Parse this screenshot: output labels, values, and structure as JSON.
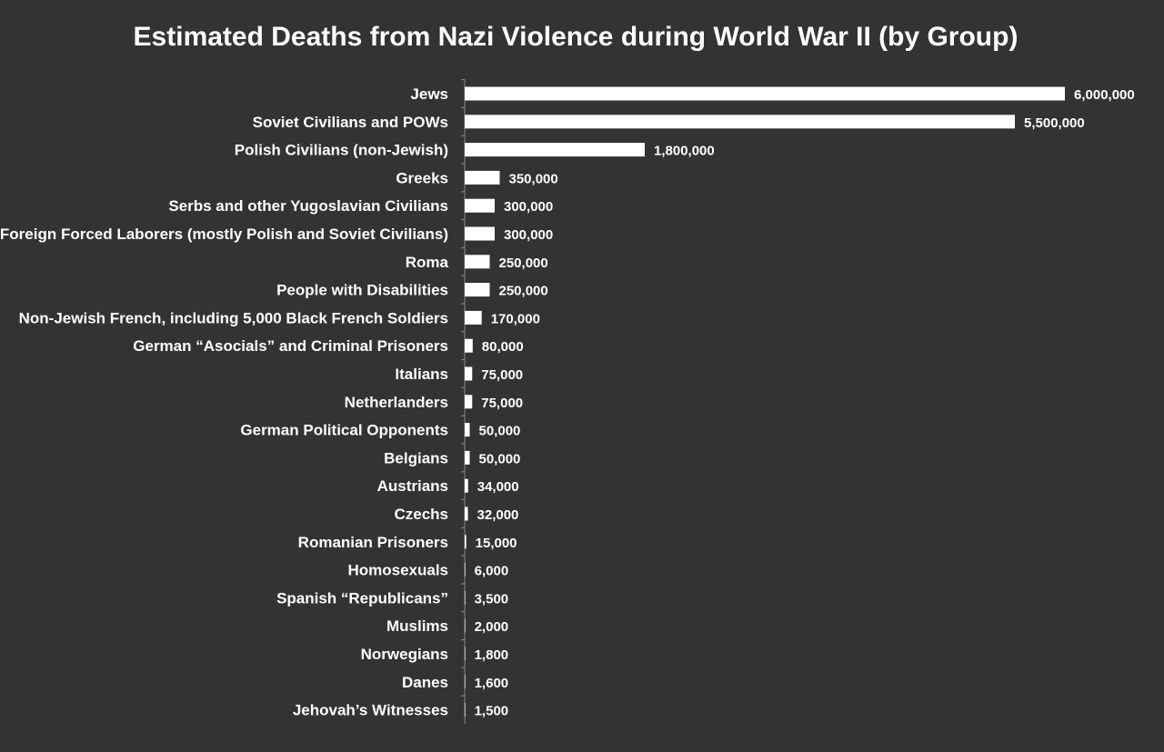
{
  "colors": {
    "background": "#333333",
    "bar": "#ffffff",
    "text": "#ffffff",
    "axis": "#888888"
  },
  "chart_data": {
    "type": "bar",
    "orientation": "horizontal",
    "title": "Estimated Deaths from Nazi Violence during World War II (by Group)",
    "xlabel": "",
    "ylabel": "",
    "xlim": [
      0,
      6000000
    ],
    "grid": false,
    "legend": "none",
    "categories": [
      "Jews",
      "Soviet Civilians and POWs",
      "Polish Civilians (non-Jewish)",
      "Greeks",
      "Serbs and other Yugoslavian Civilians",
      "Foreign Forced Laborers (mostly Polish and Soviet Civilians)",
      "Roma",
      "People with Disabilities",
      "Non-Jewish French, including 5,000 Black French Soldiers",
      "German “Asocials” and Criminal Prisoners",
      "Italians",
      "Netherlanders",
      "German Political Opponents",
      "Belgians",
      "Austrians",
      "Czechs",
      "Romanian Prisoners",
      "Homosexuals",
      "Spanish “Republicans”",
      "Muslims",
      "Norwegians",
      "Danes",
      "Jehovah’s Witnesses"
    ],
    "values": [
      6000000,
      5500000,
      1800000,
      350000,
      300000,
      300000,
      250000,
      250000,
      170000,
      80000,
      75000,
      75000,
      50000,
      50000,
      34000,
      32000,
      15000,
      6000,
      3500,
      2000,
      1800,
      1600,
      1500
    ],
    "value_labels": [
      "6,000,000",
      "5,500,000",
      "1,800,000",
      "350,000",
      "300,000",
      "300,000",
      "250,000",
      "250,000",
      "170,000",
      "80,000",
      "75,000",
      "75,000",
      "50,000",
      "50,000",
      "34,000",
      "32,000",
      "15,000",
      "6,000",
      "3,500",
      "2,000",
      "1,800",
      "1,600",
      "1,500"
    ]
  }
}
